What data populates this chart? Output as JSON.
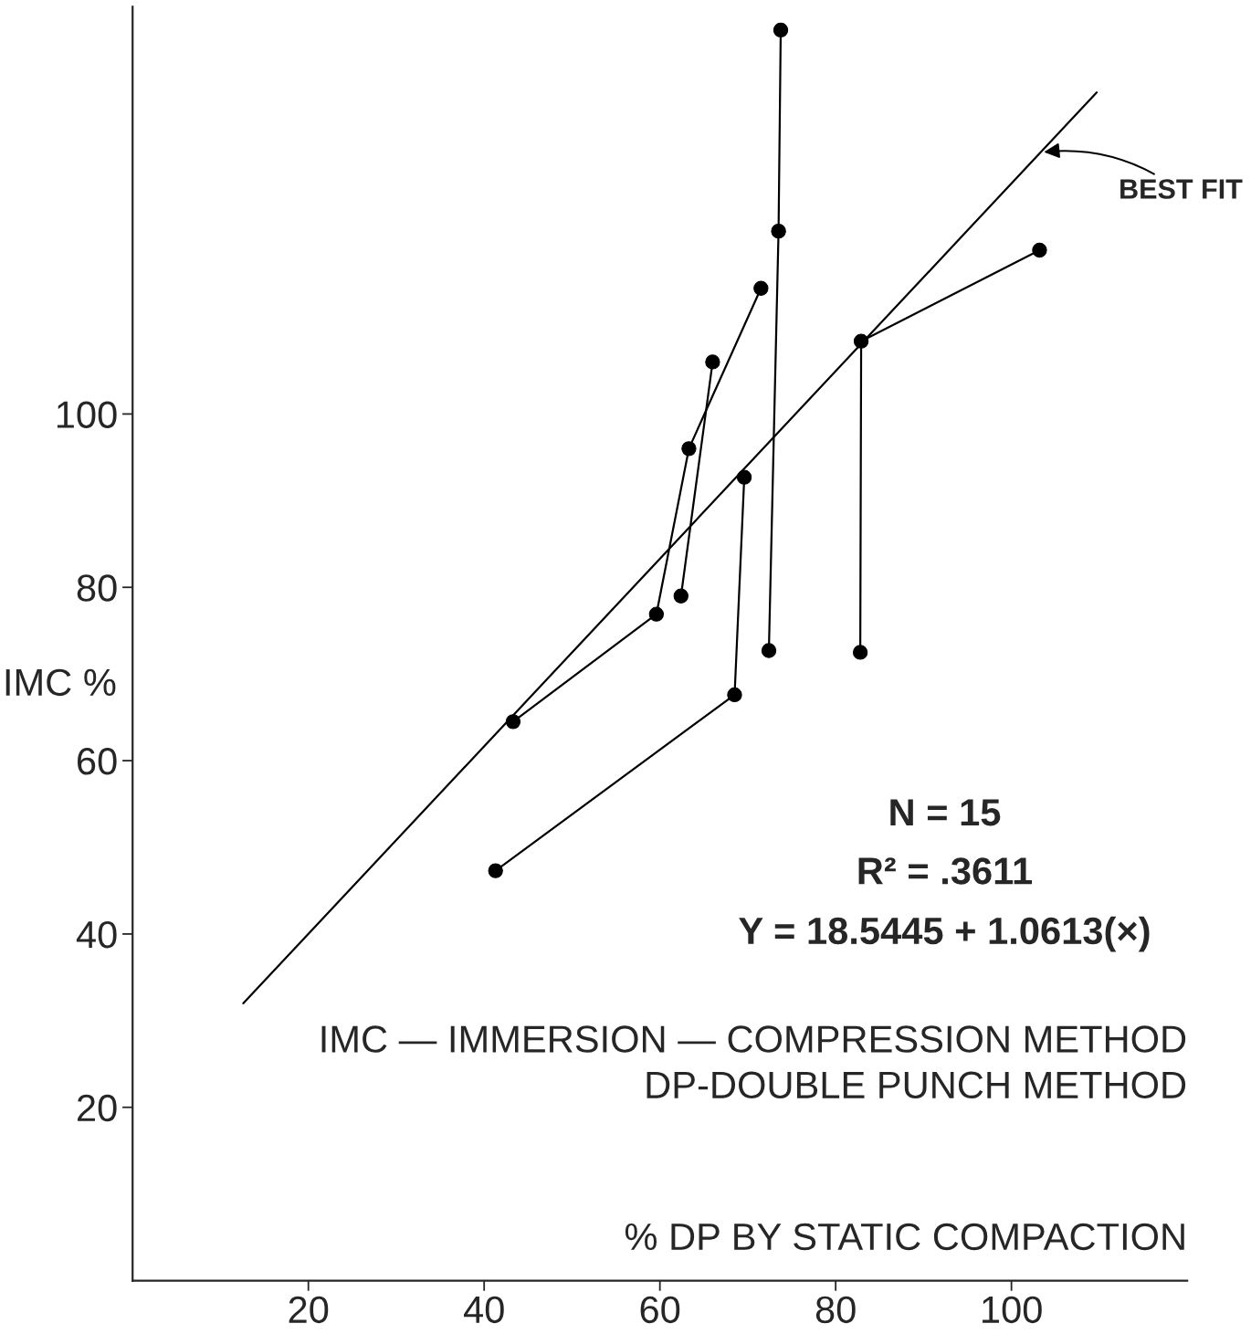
{
  "chart_data": {
    "type": "line",
    "xlabel": "% DP BY STATIC COMPACTION",
    "ylabel": "IMC %",
    "xlim": [
      0,
      120
    ],
    "ylim": [
      0,
      147
    ],
    "xticks": [
      20,
      40,
      60,
      80,
      100
    ],
    "yticks": [
      20,
      40,
      60,
      80,
      100
    ],
    "grid": false,
    "legend": false,
    "marker": "circle",
    "series": [
      {
        "color": "#000000",
        "x": [
          41.3,
          68.5,
          69.6
        ],
        "values": [
          47.3,
          67.6,
          92.7
        ]
      },
      {
        "color": "#000000",
        "x": [
          43.3,
          59.6,
          63.3,
          71.5
        ],
        "values": [
          64.5,
          76.9,
          96.0,
          114.5
        ]
      },
      {
        "color": "#000000",
        "x": [
          62.4,
          66.0
        ],
        "values": [
          79.0,
          106.0
        ]
      },
      {
        "color": "#000000",
        "x": [
          72.4,
          73.5,
          73.75
        ],
        "values": [
          72.7,
          121.1,
          144.3
        ]
      },
      {
        "color": "#000000",
        "x": [
          82.8,
          82.9,
          103.2
        ],
        "values": [
          72.5,
          108.4,
          118.9
        ]
      },
      {
        "color": "#000000",
        "type": "line",
        "marker": "none",
        "x": [
          12.6,
          109.7
        ],
        "values": [
          32.0,
          137.1
        ]
      }
    ],
    "annotations": [
      {
        "text": "BEST FIT",
        "x": 103.4,
        "y": 130.2
      },
      "N = 15",
      "R² = .3611",
      "Y = 18.5445 + 1.0613(×)",
      "IMC — IMMERSION — COMPRESSION METHOD",
      "DP-DOUBLE PUNCH METHOD"
    ]
  }
}
